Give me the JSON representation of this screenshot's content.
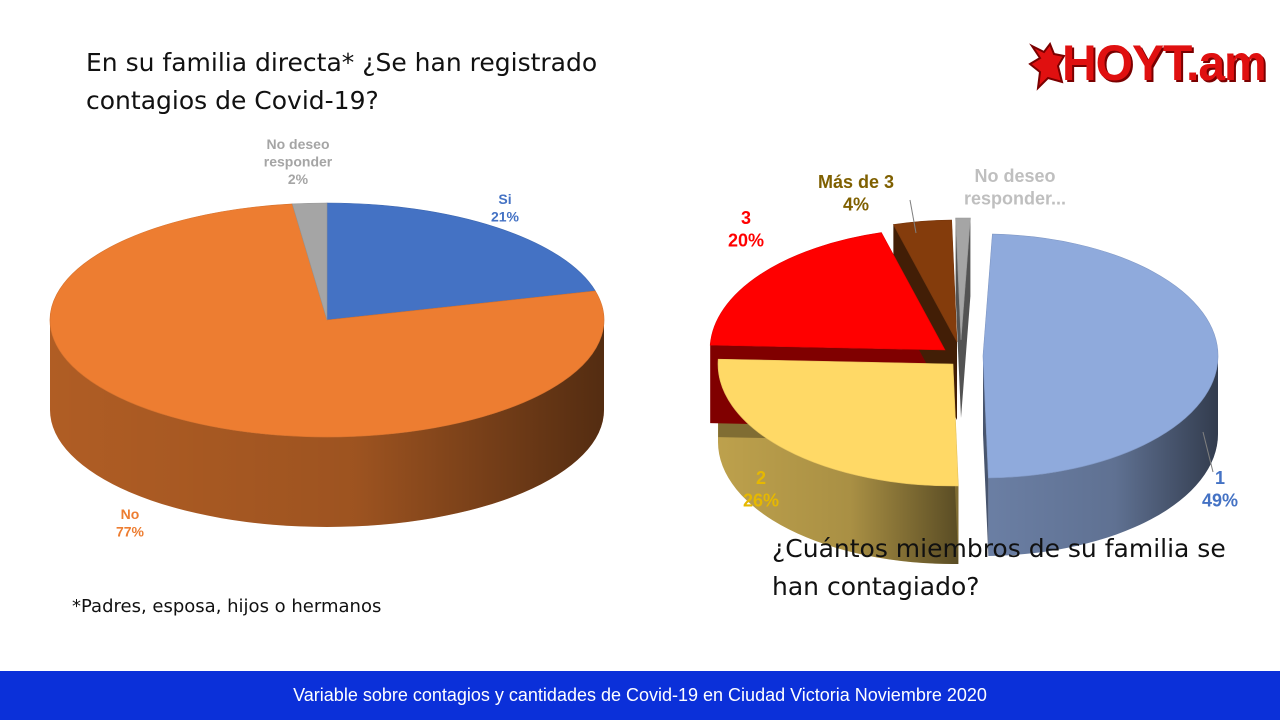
{
  "logo": {
    "text": "HOYT.am",
    "color": "#e01010"
  },
  "footer": {
    "text": "Variable sobre contagios y cantidades de Covid-19 en Ciudad Victoria Noviembre 2020",
    "background": "#0b30d9"
  },
  "footnote": "*Padres, esposa, hijos o hermanos",
  "chart_data": [
    {
      "type": "pie",
      "title": "En su familia directa* ¿Se han registrado contagios de Covid-19?",
      "slices": [
        {
          "name": "Si",
          "value": 21,
          "label": "21%",
          "color": "#4472c4"
        },
        {
          "name": "No",
          "value": 77,
          "label": "77%",
          "color": "#ed7d31"
        },
        {
          "name": "No deseo responder",
          "value": 2,
          "label": "2%",
          "color": "#a5a5a5"
        }
      ]
    },
    {
      "type": "pie",
      "title": "¿Cuántos miembros de su familia se han contagiado?",
      "slices": [
        {
          "name": "1",
          "value": 49,
          "label": "49%",
          "color": "#8faadc"
        },
        {
          "name": "2",
          "value": 26,
          "label": "26%",
          "color": "#ffd966"
        },
        {
          "name": "3",
          "value": 20,
          "label": "20%",
          "color": "#ff0000"
        },
        {
          "name": "Más de 3",
          "value": 4,
          "label": "4%",
          "color": "#843c0c"
        },
        {
          "name": "No deseo responder...",
          "value": 1,
          "label": "",
          "color": "#a5a5a5"
        }
      ]
    }
  ]
}
